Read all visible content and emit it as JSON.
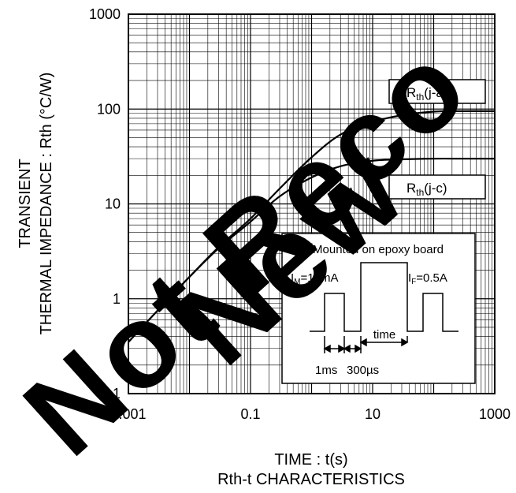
{
  "chart_data": {
    "type": "line",
    "title": "Rth-t CHARACTERISTICS",
    "xlabel": "TIME : t(s)",
    "ylabel_line1": "TRANSIENT",
    "ylabel_line2": "THERMAL IMPEDANCE : Rth (°C/W)",
    "x_scale": "log",
    "y_scale": "log",
    "xlim": [
      0.001,
      1000
    ],
    "ylim": [
      0.1,
      1000
    ],
    "grid": true,
    "x_ticks": [
      "0.001",
      "0.1",
      "10",
      "1000"
    ],
    "y_ticks": [
      "0.1",
      "1",
      "10",
      "100",
      "1000"
    ],
    "series": [
      {
        "name": "Rth(j-a)",
        "x": [
          0.001,
          0.003,
          0.01,
          0.03,
          0.1,
          0.3,
          1,
          3,
          10,
          30,
          100,
          300,
          1000
        ],
        "y": [
          0.35,
          0.75,
          1.7,
          3.5,
          7.0,
          14.5,
          31,
          54,
          73,
          86,
          94,
          95,
          95
        ]
      },
      {
        "name": "Rth(j-c)",
        "x": [
          0.001,
          0.003,
          0.01,
          0.03,
          0.1,
          0.3,
          1,
          3,
          10,
          30,
          100,
          300,
          1000
        ],
        "y": [
          0.35,
          0.75,
          1.7,
          3.4,
          6.5,
          12,
          19,
          25,
          28.5,
          29.5,
          30,
          30,
          30
        ]
      }
    ]
  },
  "labels": {
    "rth_ja": {
      "main": "R",
      "sub": "th",
      "rest": "(j-a)"
    },
    "rth_jc": {
      "main": "R",
      "sub": "th",
      "rest": "(j-c)"
    }
  },
  "inset": {
    "title": "Mounted on epoxy board",
    "im_main": "I",
    "im_sub": "M",
    "im_rest": "=10mA",
    "if_main": "I",
    "if_sub": "F",
    "if_rest": "=0.5A",
    "time_label": "time",
    "t1_label": "1ms",
    "t2_label": "300µs"
  },
  "watermark": {
    "text": "Not Recommended for New Designs",
    "color": "#000000"
  },
  "colors": {
    "curve": "#000000",
    "grid": "#000000"
  }
}
